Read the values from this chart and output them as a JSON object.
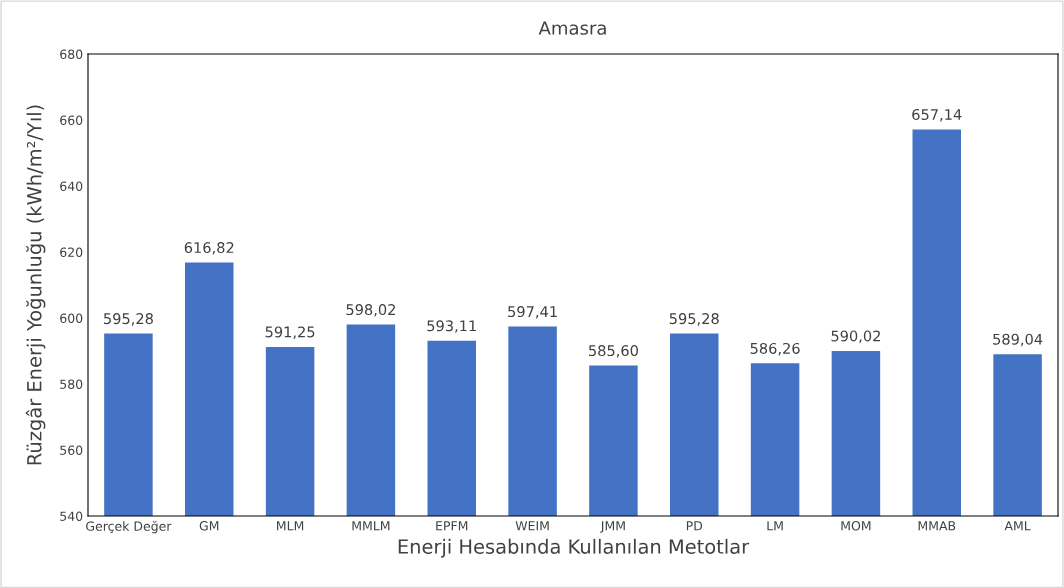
{
  "chart_data": {
    "type": "bar",
    "title": "Amasra",
    "xlabel": "Enerji Hesabında Kullanılan Metotlar",
    "ylabel": "Rüzgâr Enerji Yoğunluğu (kWh/m²/Yıl)",
    "categories": [
      "Gerçek Değer",
      "GM",
      "MLM",
      "MMLM",
      "EPFM",
      "WEIM",
      "JMM",
      "PD",
      "LM",
      "MOM",
      "MMAB",
      "AML"
    ],
    "values": [
      595.28,
      616.82,
      591.25,
      598.02,
      593.11,
      597.41,
      585.6,
      595.28,
      586.26,
      590.02,
      657.14,
      589.04
    ],
    "value_labels": [
      "595,28",
      "616,82",
      "591,25",
      "598,02",
      "593,11",
      "597,41",
      "585,60",
      "595,28",
      "586,26",
      "590,02",
      "657,14",
      "589,04"
    ],
    "color": "#4472c4",
    "ylim": [
      540,
      680
    ],
    "yticks": [
      540,
      560,
      580,
      600,
      620,
      640,
      660,
      680
    ],
    "grid": false,
    "legend": false
  }
}
